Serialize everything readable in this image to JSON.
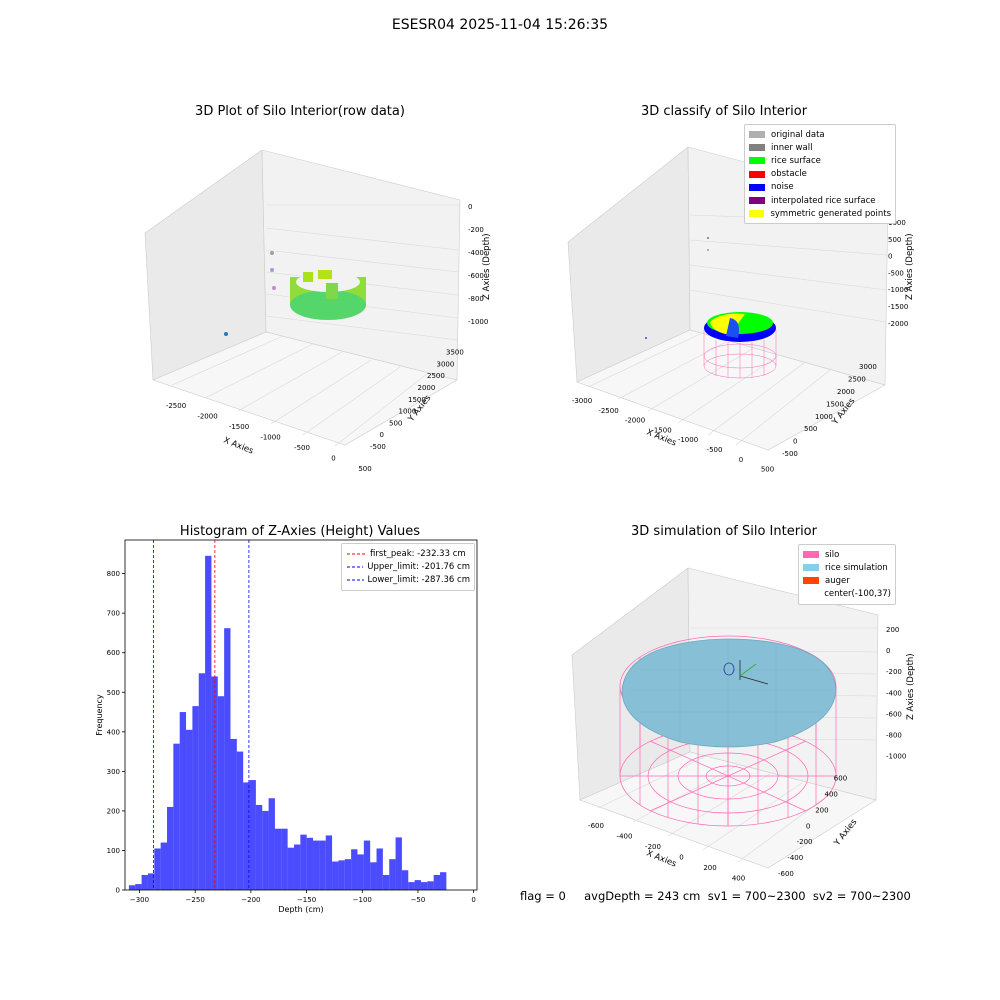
{
  "suptitle": "ESESR04 2025-11-04 15:26:35",
  "plot1": {
    "title": "3D Plot of Silo Interior(row data)",
    "xlabel": "X Axies",
    "ylabel": "Y Axies",
    "zlabel": "Z Axies (Depth)",
    "xticks": [
      "-2500",
      "-2000",
      "-1500",
      "-1000",
      "-500",
      "0",
      "500"
    ],
    "yticks": [
      "-500",
      "0",
      "500",
      "1000",
      "1500",
      "2000",
      "2500",
      "3000",
      "3500"
    ],
    "zticks": [
      "0",
      "-200",
      "-400",
      "-600",
      "-800",
      "-1000"
    ]
  },
  "plot2": {
    "title": "3D classify of Silo Interior",
    "xlabel": "X Axies",
    "ylabel": "Y Axies",
    "zlabel": "Z Axies (Depth)",
    "xticks": [
      "-3000",
      "-2500",
      "-2000",
      "-1500",
      "-1000",
      "-500",
      "0",
      "500"
    ],
    "yticks": [
      "-500",
      "0",
      "500",
      "1000",
      "1500",
      "2000",
      "2500",
      "3000"
    ],
    "zticks": [
      "1000",
      "500",
      "0",
      "-500",
      "-1000",
      "-1500",
      "-2000"
    ],
    "ztick_top_partial": "1000",
    "legend": [
      {
        "label": "original data",
        "color": "#b0b0b0"
      },
      {
        "label": "inner wall",
        "color": "#808080"
      },
      {
        "label": "rice surface",
        "color": "#00ff00"
      },
      {
        "label": "obstacle",
        "color": "#ff0000"
      },
      {
        "label": "noise",
        "color": "#0000ff"
      },
      {
        "label": "interpolated rice surface",
        "color": "#800080"
      },
      {
        "label": "symmetric generated points",
        "color": "#ffff00"
      }
    ]
  },
  "plot4": {
    "title": "3D simulation of Silo Interior",
    "xlabel": "X Axies",
    "ylabel": "Y Axies",
    "zlabel": "Z Axies (Depth)",
    "xticks": [
      "-600",
      "-400",
      "-200",
      "0",
      "200",
      "400"
    ],
    "yticks": [
      "-600",
      "-400",
      "-200",
      "0",
      "200",
      "400",
      "600"
    ],
    "zticks": [
      "200",
      "0",
      "-200",
      "-400",
      "-600",
      "-800",
      "-1000"
    ],
    "legend": [
      {
        "label": "silo",
        "color": "#ff69b4"
      },
      {
        "label": "rice simulation",
        "color": "#87ceeb"
      },
      {
        "label": "auger",
        "color": "#ff4500"
      },
      {
        "label": "center(-100,37)",
        "color": ""
      }
    ]
  },
  "footer": {
    "text": "flag = 0     avgDepth = 243 cm  sv1 = 700~2300  sv2 = 700~2300"
  },
  "chart_data": [
    {
      "type": "scatter",
      "title": "3D Plot of Silo Interior(row data)",
      "xlabel": "X Axies",
      "ylabel": "Y Axies",
      "zlabel": "Z Axies (Depth)"
    },
    {
      "type": "scatter",
      "title": "3D classify of Silo Interior",
      "xlabel": "X Axies",
      "ylabel": "Y Axies",
      "zlabel": "Z Axies (Depth)"
    },
    {
      "type": "bar",
      "title": "Histogram of Z-Axies (Height) Values",
      "xlabel": "Depth (cm)",
      "ylabel": "Frequency",
      "xlim": [
        -313,
        3
      ],
      "ylim": [
        0,
        885
      ],
      "xticks": [
        -300,
        -250,
        -200,
        -150,
        -100,
        -50,
        0
      ],
      "yticks": [
        0,
        100,
        200,
        300,
        400,
        500,
        600,
        700,
        800
      ],
      "bin_start": -309.5,
      "bin_width": 5.7,
      "values": [
        12,
        15,
        38,
        42,
        105,
        120,
        210,
        370,
        450,
        405,
        465,
        548,
        845,
        540,
        490,
        662,
        382,
        350,
        272,
        278,
        215,
        200,
        232,
        155,
        155,
        107,
        115,
        140,
        132,
        125,
        125,
        138,
        72,
        75,
        78,
        103,
        90,
        125,
        70,
        105,
        38,
        78,
        133,
        50,
        20,
        25,
        20,
        22,
        38,
        45
      ],
      "lines": [
        {
          "label": "first_peak: -232.33 cm",
          "x": -232.33,
          "color": "#ff0000"
        },
        {
          "label": "Upper_limit: -201.76 cm",
          "x": -201.76,
          "color": "#0000ff"
        },
        {
          "label": "Lower_limit: -287.36 cm",
          "x": -287.36,
          "color": "#0000ff"
        }
      ],
      "bar_color": "#0000ff"
    },
    {
      "type": "scatter",
      "title": "3D simulation of Silo Interior",
      "xlabel": "X Axies",
      "ylabel": "Y Axies",
      "zlabel": "Z Axies (Depth)"
    }
  ]
}
